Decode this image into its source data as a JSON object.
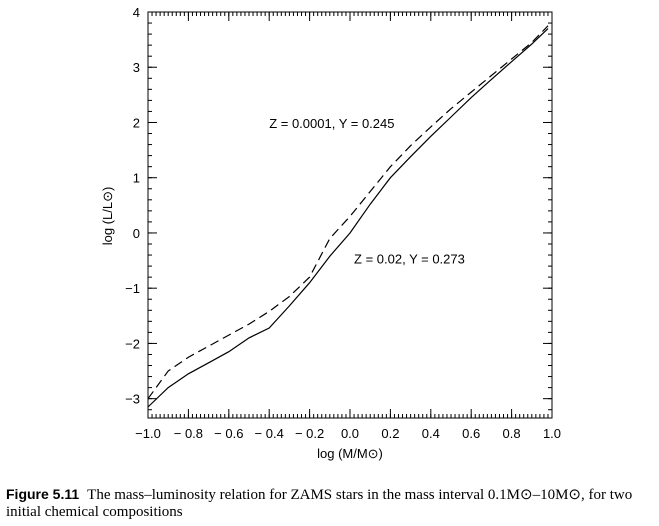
{
  "chart_data": {
    "type": "line",
    "xlabel": "log (M/M⊙)",
    "ylabel": "log (L/L⊙)",
    "xlim": [
      -1.0,
      1.0
    ],
    "ylim": [
      -3.35,
      4.0
    ],
    "xticks": [
      -1.0,
      -0.8,
      -0.6,
      -0.4,
      -0.2,
      0.0,
      0.2,
      0.4,
      0.6,
      0.8,
      1.0
    ],
    "xtick_labels": [
      "−1.0",
      "− 0.8",
      "− 0.6",
      "− 0.4",
      "− 0.2",
      "0.0",
      "0.2",
      "0.4",
      "0.6",
      "0.8",
      "1.0"
    ],
    "yticks": [
      -3,
      -2,
      -1,
      0,
      1,
      2,
      3,
      4
    ],
    "ytick_labels": [
      "−3",
      "−2",
      "−1",
      "0",
      "1",
      "2",
      "3",
      "4"
    ],
    "grid": false,
    "series": [
      {
        "name": "Z = 0.0001, Y = 0.245",
        "style": "dashed",
        "x": [
          -1.0,
          -0.9,
          -0.8,
          -0.7,
          -0.6,
          -0.5,
          -0.4,
          -0.3,
          -0.2,
          -0.1,
          0.0,
          0.1,
          0.2,
          0.3,
          0.4,
          0.5,
          0.6,
          0.7,
          0.8,
          0.9,
          0.98
        ],
        "y": [
          -3.0,
          -2.5,
          -2.25,
          -2.05,
          -1.85,
          -1.65,
          -1.42,
          -1.15,
          -0.8,
          -0.1,
          0.3,
          0.75,
          1.2,
          1.58,
          1.92,
          2.25,
          2.55,
          2.85,
          3.15,
          3.45,
          3.75
        ]
      },
      {
        "name": "Z = 0.02, Y = 0.273",
        "style": "solid",
        "x": [
          -1.0,
          -0.9,
          -0.8,
          -0.7,
          -0.6,
          -0.5,
          -0.4,
          -0.3,
          -0.2,
          -0.1,
          0.0,
          0.1,
          0.2,
          0.3,
          0.4,
          0.5,
          0.6,
          0.7,
          0.8,
          0.9,
          0.98
        ],
        "y": [
          -3.15,
          -2.8,
          -2.55,
          -2.35,
          -2.15,
          -1.9,
          -1.72,
          -1.32,
          -0.9,
          -0.42,
          0.0,
          0.52,
          1.0,
          1.38,
          1.75,
          2.1,
          2.45,
          2.78,
          3.1,
          3.42,
          3.7
        ]
      }
    ],
    "annotations": [
      {
        "text": "Z = 0.0001, Y = 0.245",
        "x": -0.4,
        "y": 1.9
      },
      {
        "text": "Z = 0.02, Y = 0.273",
        "x": 0.02,
        "y": -0.55
      }
    ]
  },
  "caption": {
    "label": "Figure 5.11",
    "text": "The mass–luminosity relation for ZAMS stars in the mass interval 0.1M⊙–10M⊙, for two initial chemical compositions"
  }
}
